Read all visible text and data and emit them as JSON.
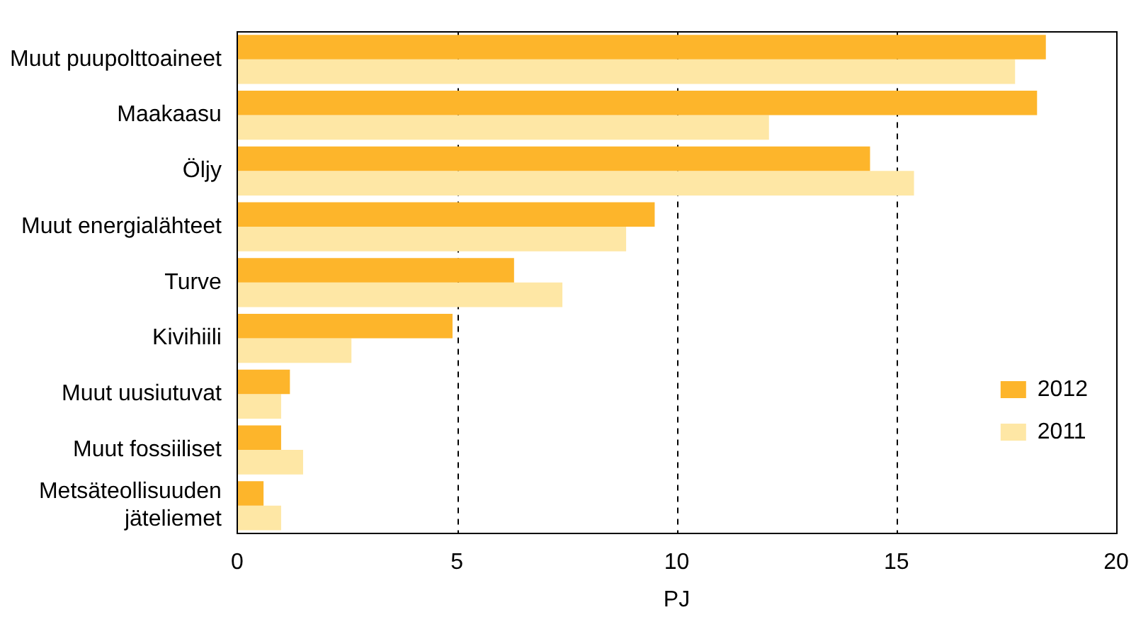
{
  "chart_data": {
    "type": "bar",
    "orientation": "horizontal",
    "xlabel": "PJ",
    "categories": [
      "Muut puupolttoaineet",
      "Maakaasu",
      "Öljy",
      "Muut energialähteet",
      "Turve",
      "Kivihiili",
      "Muut uusiutuvat",
      "Muut fossiiliset",
      "Metsäteollisuuden jäteliemet"
    ],
    "series": [
      {
        "name": "2012",
        "color": "#fdb52b",
        "values": [
          18.4,
          18.2,
          14.4,
          9.5,
          6.3,
          4.9,
          1.2,
          1.0,
          0.6
        ]
      },
      {
        "name": "2011",
        "color": "#fee7a5",
        "values": [
          17.7,
          12.1,
          15.4,
          8.85,
          7.4,
          2.6,
          1.0,
          1.5,
          1.0
        ]
      }
    ],
    "xlim": [
      0,
      20
    ],
    "xticks": [
      0,
      5,
      10,
      15,
      20
    ],
    "grid": "x",
    "legend": "right"
  }
}
